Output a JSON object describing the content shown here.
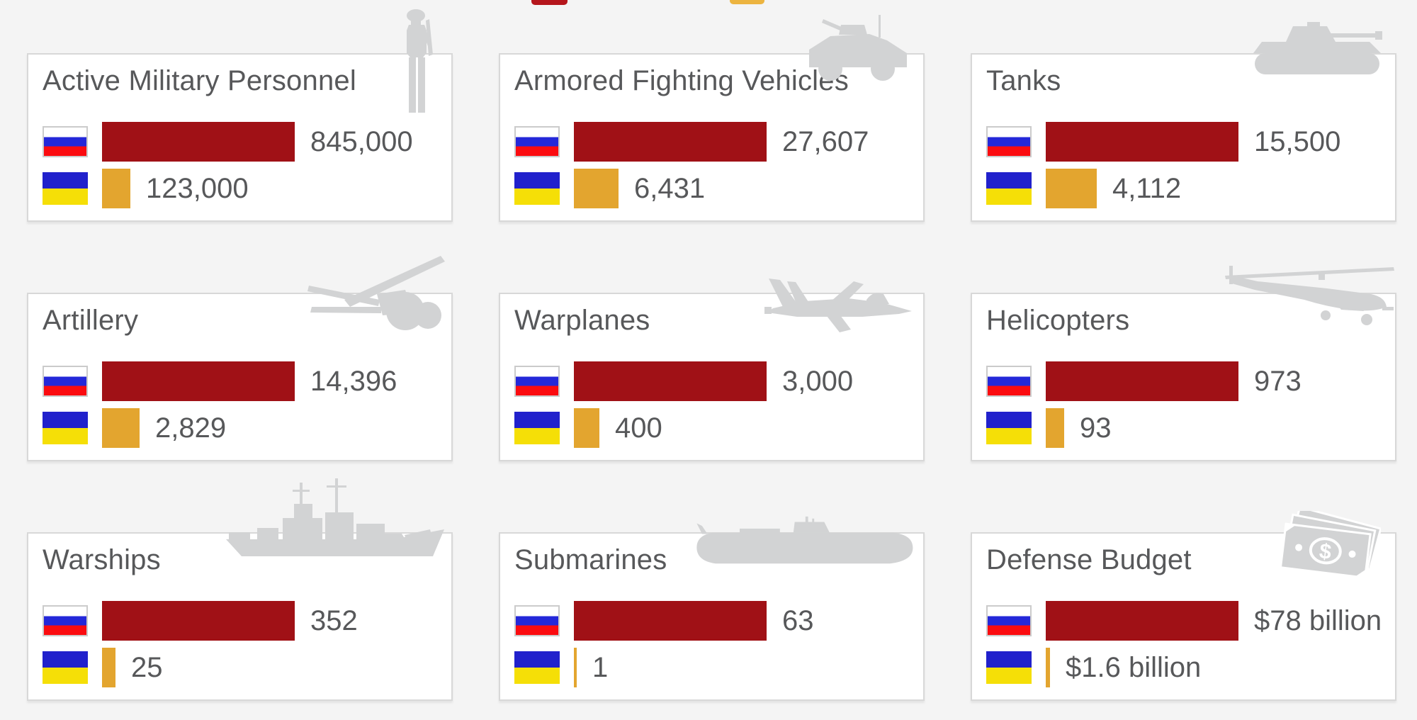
{
  "page": {
    "background": "#f4f4f4",
    "description": "Russia vs Ukraine military balance infographic, 3x3 grid of comparison cards"
  },
  "legend": {
    "note": "legend cut off at top edge, only swatch bottoms visible",
    "items": [
      {
        "name": "russia-swatch",
        "color": "#b5161c"
      },
      {
        "name": "ukraine-swatch",
        "color": "#ecb440"
      }
    ]
  },
  "colors": {
    "russia_bar": "#a01116",
    "ukraine_bar": "#e3a52f",
    "text": "#57585a",
    "card_border": "#d8d8d8",
    "icon_gray": "#d2d3d4",
    "russia_flag": [
      "#ffffff",
      "#2428d9",
      "#fb0b0f"
    ],
    "ukraine_flag": [
      "#2121cc",
      "#f5df07"
    ]
  },
  "chart_data": [
    {
      "type": "bar",
      "title": "Active Military Personnel",
      "icon": "soldier-icon",
      "series": [
        {
          "name": "Russia",
          "value": 845000,
          "label": "845,000"
        },
        {
          "name": "Ukraine",
          "value": 123000,
          "label": "123,000"
        }
      ]
    },
    {
      "type": "bar",
      "title": "Armored Fighting Vehicles",
      "icon": "armored-vehicle-icon",
      "series": [
        {
          "name": "Russia",
          "value": 27607,
          "label": "27,607"
        },
        {
          "name": "Ukraine",
          "value": 6431,
          "label": "6,431"
        }
      ]
    },
    {
      "type": "bar",
      "title": "Tanks",
      "icon": "tank-icon",
      "series": [
        {
          "name": "Russia",
          "value": 15500,
          "label": "15,500"
        },
        {
          "name": "Ukraine",
          "value": 4112,
          "label": "4,112"
        }
      ]
    },
    {
      "type": "bar",
      "title": "Artillery",
      "icon": "artillery-icon",
      "series": [
        {
          "name": "Russia",
          "value": 14396,
          "label": "14,396"
        },
        {
          "name": "Ukraine",
          "value": 2829,
          "label": "2,829"
        }
      ]
    },
    {
      "type": "bar",
      "title": "Warplanes",
      "icon": "warplane-icon",
      "series": [
        {
          "name": "Russia",
          "value": 3000,
          "label": "3,000"
        },
        {
          "name": "Ukraine",
          "value": 400,
          "label": "400"
        }
      ]
    },
    {
      "type": "bar",
      "title": "Helicopters",
      "icon": "helicopter-icon",
      "series": [
        {
          "name": "Russia",
          "value": 973,
          "label": "973"
        },
        {
          "name": "Ukraine",
          "value": 93,
          "label": "93"
        }
      ]
    },
    {
      "type": "bar",
      "title": "Warships",
      "icon": "warship-icon",
      "series": [
        {
          "name": "Russia",
          "value": 352,
          "label": "352"
        },
        {
          "name": "Ukraine",
          "value": 25,
          "label": "25"
        }
      ]
    },
    {
      "type": "bar",
      "title": "Submarines",
      "icon": "submarine-icon",
      "series": [
        {
          "name": "Russia",
          "value": 63,
          "label": "63"
        },
        {
          "name": "Ukraine",
          "value": 1,
          "label": "1"
        }
      ]
    },
    {
      "type": "bar",
      "title": "Defense Budget",
      "icon": "money-icon",
      "series": [
        {
          "name": "Russia",
          "value": 78,
          "label": "$78 billion"
        },
        {
          "name": "Ukraine",
          "value": 1.6,
          "label": "$1.6 billion"
        }
      ]
    }
  ]
}
